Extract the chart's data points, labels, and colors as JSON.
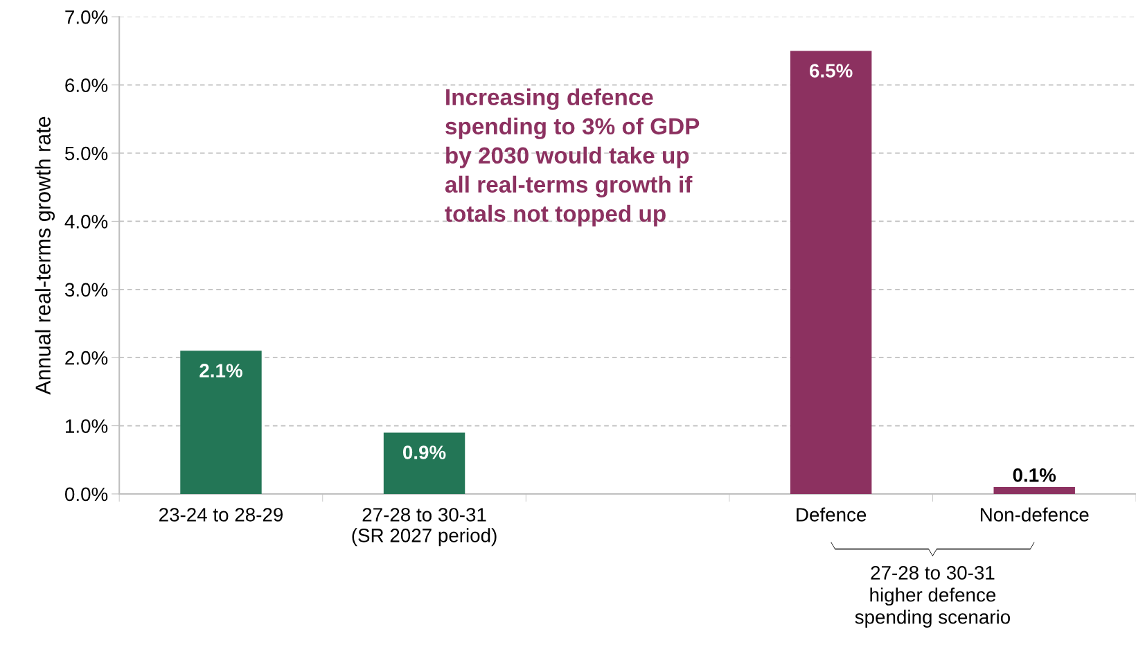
{
  "chart_data": {
    "type": "bar",
    "ylabel": "Annual real-terms growth rate",
    "categories": [
      "23-24 to 28-29",
      "27-28 to 30-31\n(SR 2027 period)",
      null,
      "Defence",
      "Non-defence"
    ],
    "values": [
      2.1,
      0.9,
      null,
      6.5,
      0.1
    ],
    "colors": [
      "#237656",
      "#237656",
      null,
      "#8c3160",
      "#8c3160"
    ],
    "value_labels": [
      "2.1%",
      "0.9%",
      null,
      "6.5%",
      "0.1%"
    ],
    "ylim": [
      0,
      7
    ],
    "yticks": [
      {
        "value": 0,
        "label": "0.0%"
      },
      {
        "value": 1,
        "label": "1.0%"
      },
      {
        "value": 2,
        "label": "2.0%"
      },
      {
        "value": 3,
        "label": "3.0%"
      },
      {
        "value": 4,
        "label": "4.0%"
      },
      {
        "value": 5,
        "label": "5.0%"
      },
      {
        "value": 6,
        "label": "6.0%"
      },
      {
        "value": 7,
        "label": "7.0%"
      }
    ],
    "grid": "y",
    "annotations": [
      "Increasing defence\nspending to 3% of GDP\nby 2030 would take up\nall real-terms growth if\ntotals not topped up",
      "27-28 to 30-31\nhigher defence\nspending scenario"
    ]
  }
}
